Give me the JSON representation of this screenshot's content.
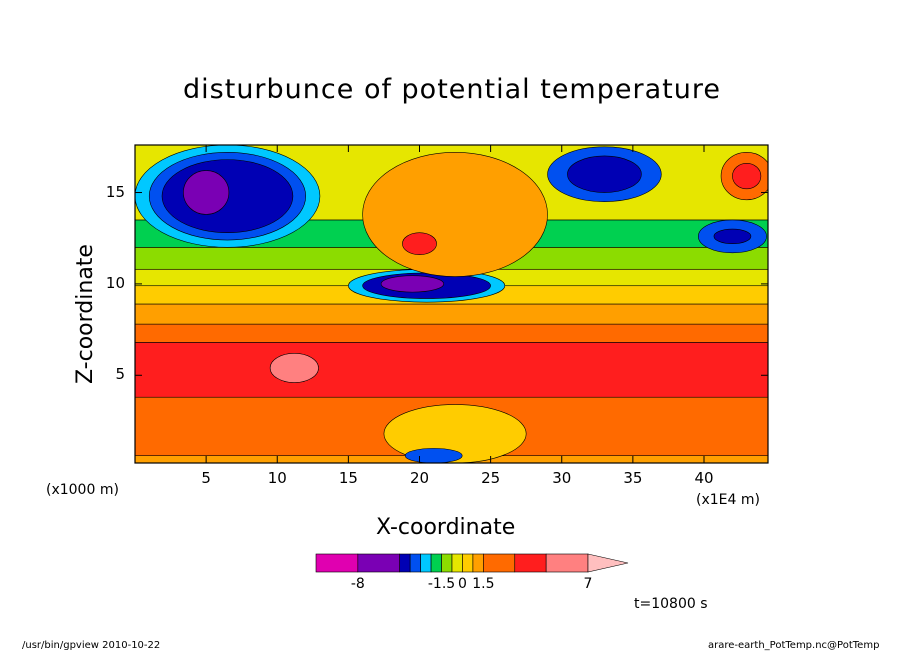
{
  "chart_data": {
    "type": "heatmap",
    "title": "disturbunce of potential temperature",
    "xlabel": "X-coordinate",
    "ylabel": "Z-coordinate",
    "x_units": "(x1E4 m)",
    "y_units": "(x1000 m)",
    "x_ticks": [
      5,
      10,
      15,
      20,
      25,
      30,
      35,
      40
    ],
    "y_ticks": [
      5,
      10,
      15
    ],
    "xlim": [
      0,
      44.5
    ],
    "ylim": [
      0.2,
      17.6
    ],
    "colorbar": {
      "labels": [
        "-8",
        "-1.5",
        "0",
        "1.5",
        "7"
      ],
      "colors": [
        "#e000b0",
        "#7a00b4",
        "#0000b4",
        "#0050f0",
        "#00c8ff",
        "#00d050",
        "#8cdc00",
        "#e6e600",
        "#ffcc00",
        "#ff9f00",
        "#ff6a00",
        "#ff1e1e",
        "#ff8080",
        "#ffbfbf"
      ],
      "extend": "max"
    },
    "time_label": "t=10800 s",
    "bands": [
      {
        "z": [
          0.2,
          0.6
        ],
        "value": 0.5,
        "color": "#ff9f00"
      },
      {
        "z": [
          0.6,
          3.8
        ],
        "value": 2.0,
        "color": "#ff6a00"
      },
      {
        "z": [
          3.8,
          6.8
        ],
        "value": 4.0,
        "color": "#ff1e1e"
      },
      {
        "z": [
          6.8,
          7.8
        ],
        "value": 2.0,
        "color": "#ff6a00"
      },
      {
        "z": [
          7.8,
          8.9
        ],
        "value": 1.0,
        "color": "#ff9f00"
      },
      {
        "z": [
          8.9,
          9.9
        ],
        "value": 0.3,
        "color": "#ffcc00"
      },
      {
        "z": [
          9.9,
          10.8
        ],
        "value": -0.3,
        "color": "#e6e600"
      },
      {
        "z": [
          10.8,
          12.0
        ],
        "value": -0.8,
        "color": "#8cdc00"
      },
      {
        "z": [
          12.0,
          13.5
        ],
        "value": -1.2,
        "color": "#00d050"
      },
      {
        "z": [
          13.5,
          17.6
        ],
        "value": -0.5,
        "color": "#e6e600"
      }
    ],
    "features": [
      {
        "kind": "cold-anomaly",
        "x": 6.5,
        "z": 14.8,
        "rx": 6.5,
        "rz": 2.8,
        "value": -3,
        "color": "#00c8ff"
      },
      {
        "kind": "cold-anomaly",
        "x": 6.5,
        "z": 14.8,
        "rx": 5.5,
        "rz": 2.4,
        "value": -4,
        "color": "#0050f0"
      },
      {
        "kind": "cold-anomaly",
        "x": 6.5,
        "z": 14.8,
        "rx": 4.6,
        "rz": 2.0,
        "value": -5,
        "color": "#0000b4"
      },
      {
        "kind": "cold-anomaly",
        "x": 5.0,
        "z": 15.0,
        "rx": 1.6,
        "rz": 1.2,
        "value": -6,
        "color": "#7a00b4"
      },
      {
        "kind": "cold-anomaly",
        "x": 20.5,
        "z": 9.9,
        "rx": 5.5,
        "rz": 0.9,
        "value": -3,
        "color": "#00c8ff"
      },
      {
        "kind": "cold-anomaly",
        "x": 20.5,
        "z": 9.9,
        "rx": 4.5,
        "rz": 0.7,
        "value": -4,
        "color": "#0000b4"
      },
      {
        "kind": "cold-anomaly",
        "x": 19.5,
        "z": 10.0,
        "rx": 2.2,
        "rz": 0.45,
        "value": -6,
        "color": "#7a00b4"
      },
      {
        "kind": "warm-anomaly",
        "x": 22.5,
        "z": 13.8,
        "rx": 6.5,
        "rz": 3.4,
        "value": 1.0,
        "color": "#ff9f00"
      },
      {
        "kind": "warm-anomaly",
        "x": 20.0,
        "z": 12.2,
        "rx": 1.2,
        "rz": 0.6,
        "value": 3.0,
        "color": "#ff1e1e"
      },
      {
        "kind": "cold-anomaly",
        "x": 33.0,
        "z": 16.0,
        "rx": 4.0,
        "rz": 1.5,
        "value": -4,
        "color": "#0050f0"
      },
      {
        "kind": "cold-anomaly",
        "x": 33.0,
        "z": 16.0,
        "rx": 2.6,
        "rz": 1.0,
        "value": -5,
        "color": "#0000b4"
      },
      {
        "kind": "cold-anomaly",
        "x": 42.0,
        "z": 12.6,
        "rx": 2.4,
        "rz": 0.9,
        "value": -3,
        "color": "#0050f0"
      },
      {
        "kind": "cold-anomaly",
        "x": 42.0,
        "z": 12.6,
        "rx": 1.3,
        "rz": 0.4,
        "value": -5,
        "color": "#0000b4"
      },
      {
        "kind": "warm-anomaly",
        "x": 43.0,
        "z": 15.9,
        "rx": 1.8,
        "rz": 1.3,
        "value": 3.0,
        "color": "#ff6a00"
      },
      {
        "kind": "warm-anomaly",
        "x": 43.0,
        "z": 15.9,
        "rx": 1.0,
        "rz": 0.7,
        "value": 5.0,
        "color": "#ff1e1e"
      },
      {
        "kind": "warm-anomaly",
        "x": 11.2,
        "z": 5.4,
        "rx": 1.7,
        "rz": 0.8,
        "value": 6.0,
        "color": "#ff8080"
      },
      {
        "kind": "convective-cell",
        "x": 22.5,
        "z": 1.8,
        "rx": 5.0,
        "rz": 1.6,
        "value": 0.5,
        "color": "#ffcc00"
      },
      {
        "kind": "convective-cell",
        "x": 21.0,
        "z": 0.6,
        "rx": 2.0,
        "rz": 0.4,
        "value": -3,
        "color": "#0050f0"
      }
    ]
  },
  "footer": {
    "left": "/usr/bin/gpview  2010-10-22",
    "right": "arare-earth_PotTemp.nc@PotTemp"
  }
}
